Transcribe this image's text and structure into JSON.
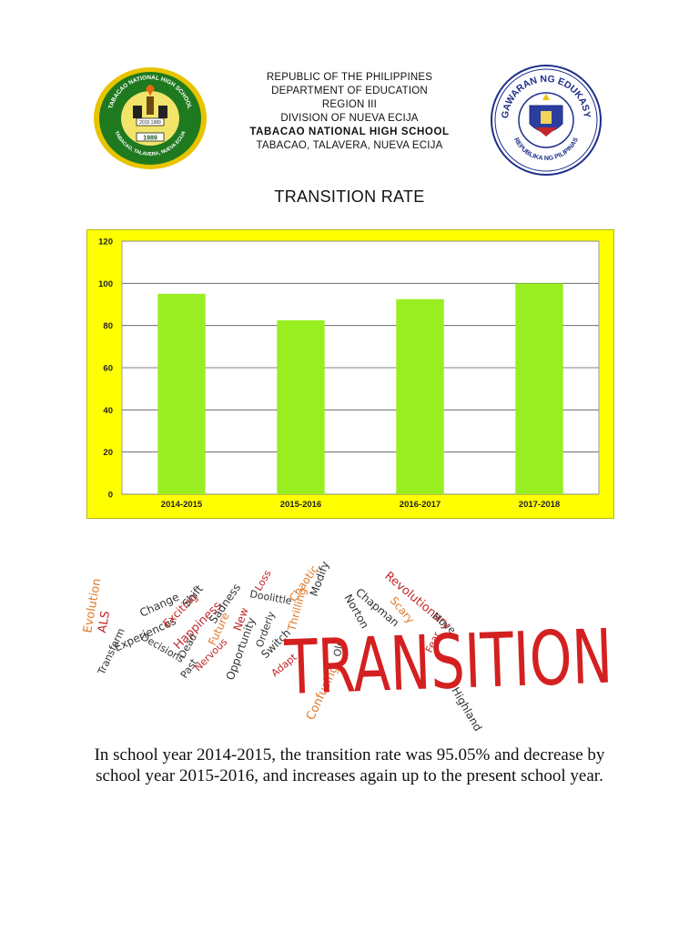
{
  "header": {
    "line1": "REPUBLIC OF THE PHILIPPINES",
    "line2": "DEPARTMENT OF EDUCATION",
    "line3": "REGION III",
    "line4": "DIVISION OF NUEVA ECIJA",
    "school_name": "TABACAO NATIONAL HIGH SCHOOL",
    "address": "TABACAO, TALAVERA, NUEVA ECIJA"
  },
  "left_seal": {
    "text_top": "TABACAO NATIONAL HIGH SCHOOL",
    "text_bottom": "TABACAO, TALAVERA, NUEVA ECIJA",
    "year_band": "2015 1989",
    "year": "1989",
    "icon": "school-seal-icon"
  },
  "right_seal": {
    "text_top": "KAGAWARAN NG EDUKASYON",
    "text_bottom": "REPUBLIKA NG PILIPINAS",
    "icon": "deped-seal-icon"
  },
  "chart_data": {
    "type": "bar",
    "title": "TRANSITION RATE",
    "categories": [
      "2014-2015",
      "2015-2016",
      "2016-2017",
      "2017-2018"
    ],
    "values": [
      95.05,
      82.5,
      92.5,
      100
    ],
    "ylim": [
      0,
      120
    ],
    "yticks": [
      0,
      20,
      40,
      60,
      80,
      100,
      120
    ],
    "grid": true,
    "legend": "none",
    "xlabel": "",
    "ylabel": "",
    "colors": {
      "bar": "#99ee22",
      "background": "#ffff00",
      "grid": "#555555"
    }
  },
  "wordcloud": {
    "main_word": "TRANSITION",
    "main_color": "#d42020",
    "words": [
      "Evolution",
      "ALS",
      "Transform",
      "Experiences",
      "Change",
      "Decisions",
      "Exciting",
      "Shift",
      "Happiness",
      "Dead",
      "Past",
      "Nervous",
      "Sadness",
      "Future",
      "New",
      "Opportunity",
      "Doolittle",
      "Loss",
      "Orderly",
      "Switch",
      "Adapt",
      "Chaotic",
      "Thrilling",
      "Modify",
      "Norton",
      "Chapman",
      "Revolutionary",
      "Scary",
      "Move",
      "Old",
      "Confusing",
      "Fear",
      "Highland"
    ],
    "colors": {
      "dark": "#333333",
      "red": "#c0282a",
      "orange": "#e07a2a"
    }
  },
  "caption": "In school year 2014-2015, the transition rate was 95.05% and decrease by school year 2015-2016, and increases again up to the present school year."
}
